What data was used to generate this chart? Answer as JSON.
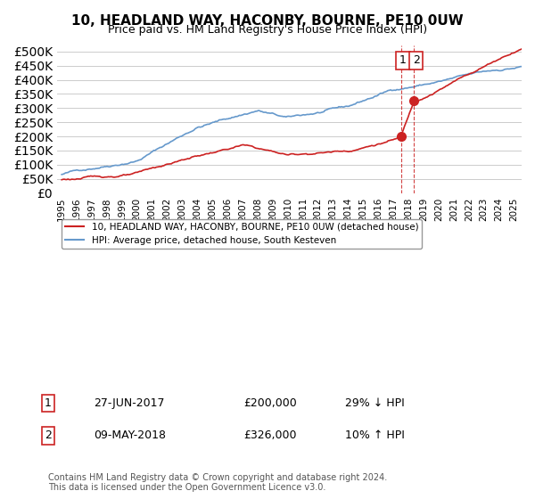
{
  "title": "10, HEADLAND WAY, HACONBY, BOURNE, PE10 0UW",
  "subtitle": "Price paid vs. HM Land Registry's House Price Index (HPI)",
  "ytick_vals": [
    0,
    50000,
    100000,
    150000,
    200000,
    250000,
    300000,
    350000,
    400000,
    450000,
    500000
  ],
  "ylim": [
    0,
    520000
  ],
  "xlim_start": 1994.7,
  "xlim_end": 2025.5,
  "hpi_color": "#6699cc",
  "price_color": "#cc2222",
  "transaction1_date": 2017.49,
  "transaction1_price": 200000,
  "transaction1_label": "1",
  "transaction2_date": 2018.36,
  "transaction2_price": 326000,
  "transaction2_label": "2",
  "vline_color": "#cc2222",
  "legend_label1": "10, HEADLAND WAY, HACONBY, BOURNE, PE10 0UW (detached house)",
  "legend_label2": "HPI: Average price, detached house, South Kesteven",
  "annotation1_num": "1",
  "annotation1_date": "27-JUN-2017",
  "annotation1_price": "£200,000",
  "annotation1_pct": "29% ↓ HPI",
  "annotation2_num": "2",
  "annotation2_date": "09-MAY-2018",
  "annotation2_price": "£326,000",
  "annotation2_pct": "10% ↑ HPI",
  "footer": "Contains HM Land Registry data © Crown copyright and database right 2024.\nThis data is licensed under the Open Government Licence v3.0.",
  "background_color": "#ffffff",
  "grid_color": "#cccccc"
}
